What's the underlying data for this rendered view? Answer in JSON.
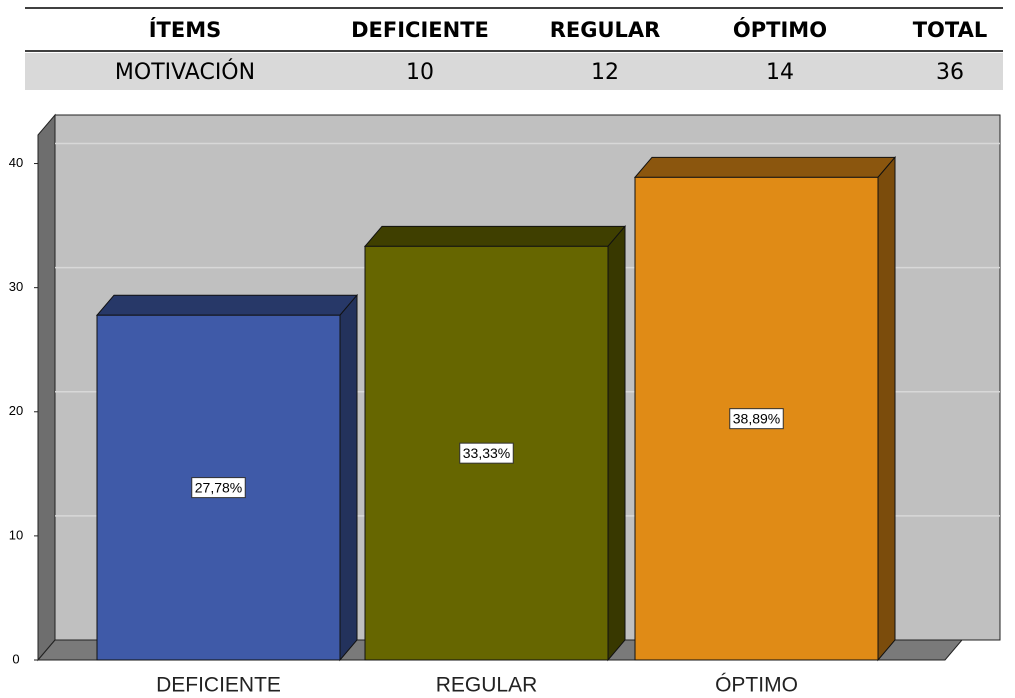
{
  "table": {
    "header": [
      "ÍTEMS",
      "DEFICIENTE",
      "REGULAR",
      "ÓPTIMO",
      "TOTAL"
    ],
    "rows": [
      [
        "MOTIVACIÓN",
        10,
        12,
        14,
        36
      ]
    ]
  },
  "chart_data": {
    "type": "bar3d",
    "categories": [
      "DEFICIENTE",
      "REGULAR",
      "ÓPTIMO"
    ],
    "values": [
      27.78,
      33.33,
      38.89
    ],
    "value_labels": [
      "27,78%",
      "33,33%",
      "38,89%"
    ],
    "colors": [
      "#3f5aa8",
      "#666600",
      "#e08b16"
    ],
    "ylim": [
      0,
      42.3
    ],
    "yticks": [
      0,
      10,
      20,
      30,
      40
    ],
    "grid": true
  }
}
